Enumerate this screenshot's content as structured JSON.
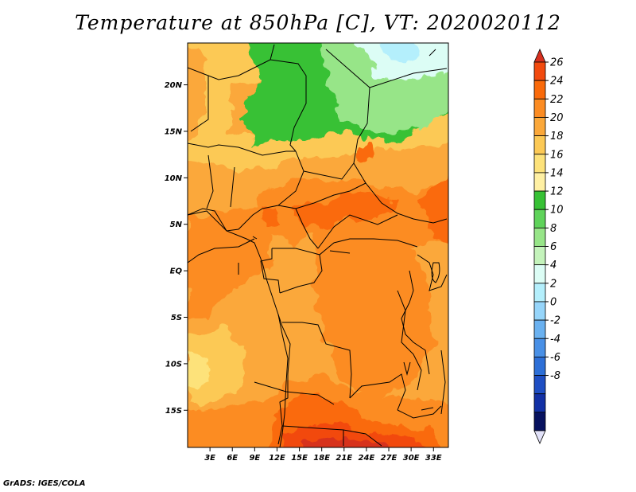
{
  "title": "Temperature at 850hPa [C], VT: 2020020112",
  "credit": "GrADS: IGES/COLA",
  "map": {
    "lat_labels": [
      "20N",
      "15N",
      "10N",
      "5N",
      "EQ",
      "5S",
      "10S",
      "15S"
    ],
    "lon_labels": [
      "3E",
      "6E",
      "9E",
      "12E",
      "15E",
      "18E",
      "21E",
      "24E",
      "27E",
      "30E",
      "33E"
    ],
    "lon_range": [
      0,
      35
    ],
    "lat_range": [
      -19,
      24.5
    ]
  },
  "colorbar": {
    "labels": [
      "26",
      "24",
      "22",
      "20",
      "18",
      "16",
      "14",
      "12",
      "10",
      "8",
      "6",
      "4",
      "2",
      "0",
      "-2",
      "-4",
      "-6",
      "-8"
    ],
    "colors": [
      "#d7301f",
      "#f24a0e",
      "#fa6a0a",
      "#fc8c22",
      "#fba83a",
      "#fcc955",
      "#fde27a",
      "#fff0a3",
      "#37c135",
      "#5fd35a",
      "#97e588",
      "#c4f3bb",
      "#dcfdf5",
      "#b4effc",
      "#96d5fa",
      "#6ab1f0",
      "#4990e6",
      "#2d6fd7",
      "#1e4ec3",
      "#1230a5",
      "#07125f",
      "#e1e1f8"
    ]
  }
}
